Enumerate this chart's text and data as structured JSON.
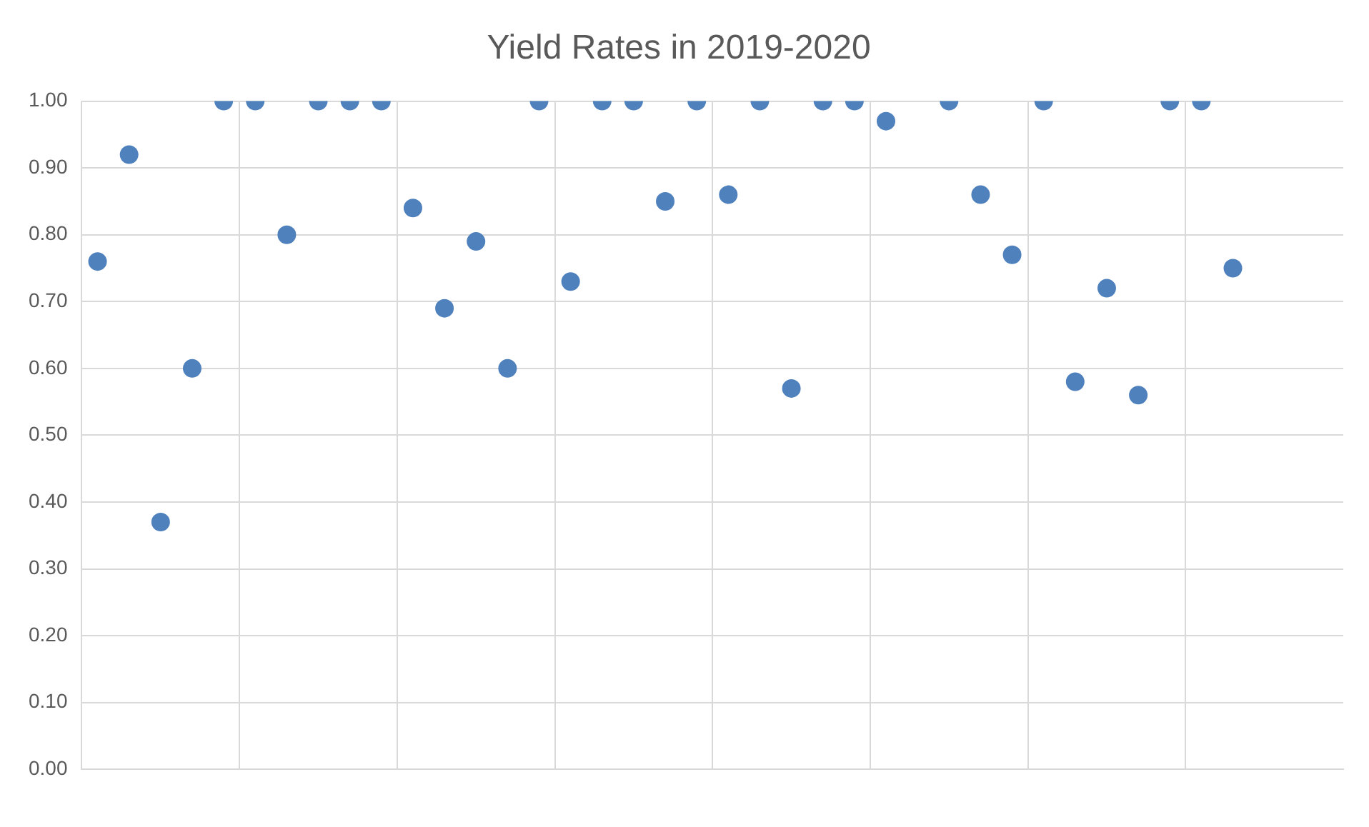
{
  "chart_data": {
    "type": "scatter",
    "title": "Yield Rates in 2019-2020",
    "categories": [
      null,
      null,
      null,
      null,
      null,
      null,
      null,
      null,
      null,
      null,
      null,
      null,
      null,
      null,
      null,
      null,
      null,
      null,
      null,
      null,
      null,
      null,
      null,
      null,
      null,
      null,
      null,
      null,
      null,
      null,
      null,
      null,
      null,
      null,
      null,
      null,
      null,
      null,
      null,
      null
    ],
    "series": [
      {
        "color": "#4f81bd",
        "values": [
          0.76,
          0.92,
          0.37,
          0.6,
          1.0,
          1.0,
          0.8,
          1.0,
          1.0,
          1.0,
          0.84,
          0.69,
          0.79,
          0.6,
          1.0,
          0.73,
          1.0,
          1.0,
          0.85,
          1.0,
          0.86,
          1.0,
          0.57,
          1.0,
          1.0,
          0.97,
          null,
          1.0,
          0.86,
          0.77,
          1.0,
          0.58,
          0.72,
          0.56,
          1.0,
          1.0,
          0.75,
          null,
          null,
          null
        ]
      }
    ],
    "ylim": [
      0,
      1
    ],
    "yticks": [
      {
        "value": 0,
        "label": "0.00"
      },
      {
        "value": 0.1,
        "label": "0.10"
      },
      {
        "value": 0.2,
        "label": "0.20"
      },
      {
        "value": 0.3,
        "label": "0.30"
      },
      {
        "value": 0.4,
        "label": "0.40"
      },
      {
        "value": 0.5,
        "label": "0.50"
      },
      {
        "value": 0.6,
        "label": "0.60"
      },
      {
        "value": 0.7,
        "label": "0.70"
      },
      {
        "value": 0.8,
        "label": "0.80"
      },
      {
        "value": 0.9,
        "label": "0.90"
      },
      {
        "value": 1,
        "label": "1.00"
      }
    ],
    "grid": true,
    "marker": "circle"
  }
}
